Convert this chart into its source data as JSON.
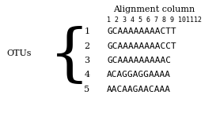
{
  "title": "Alignment column",
  "col_numbers": "1 2 3 4 5 6 7 8 9 101112",
  "otu_label": "OTUs",
  "otu_numbers": [
    "1",
    "2",
    "3",
    "4",
    "5"
  ],
  "sequences_display": [
    "GCAAAAAAAACTT",
    "GCAAAAAAAACCT",
    "GCAAAAAAAAAC",
    "ACAGGAGGAAAA",
    "AACAAGAACAAA"
  ],
  "bg_color": "#ffffff",
  "text_color": "#000000",
  "mono_font": "monospace",
  "serif_font": "DejaVu Serif"
}
